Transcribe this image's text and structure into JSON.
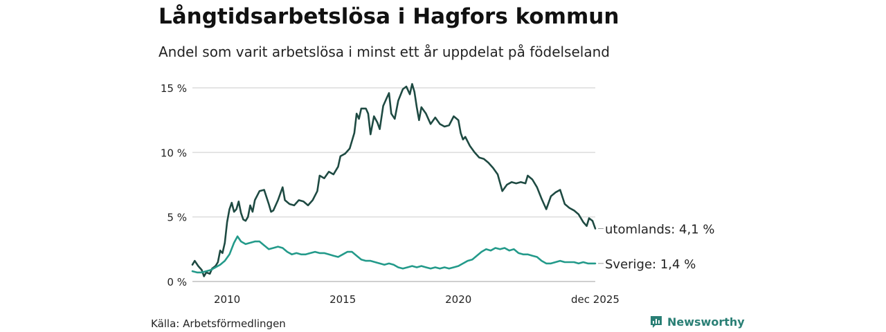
{
  "header": {
    "title": "Långtidsarbetslösa i Hagfors kommun",
    "subtitle": "Andel som varit arbetslösa i minst ett år uppdelat på födelseland"
  },
  "footer": {
    "source": "Källa: Arbetsförmedlingen",
    "brand": "Newsworthy",
    "brand_color": "#2a7f75"
  },
  "chart_data": {
    "type": "line",
    "x_start": "2008-06",
    "x_end": "2025-12",
    "ylim": [
      0,
      15.5
    ],
    "yticks": [
      {
        "value": 0,
        "label": "0 %"
      },
      {
        "value": 5,
        "label": "5 %"
      },
      {
        "value": 10,
        "label": "10 %"
      },
      {
        "value": 15,
        "label": "15 %"
      }
    ],
    "xticks": [
      {
        "value": 2010,
        "label": "2010"
      },
      {
        "value": 2015,
        "label": "2015"
      },
      {
        "value": 2020,
        "label": "2020"
      },
      {
        "value": 2025.92,
        "label": "dec 2025"
      }
    ],
    "grid": true,
    "series": [
      {
        "name": "utomlands",
        "end_label": "utomlands: 4,1 %",
        "color": "#1e4a42",
        "points": [
          [
            2008.5,
            1.3
          ],
          [
            2008.6,
            1.6
          ],
          [
            2008.75,
            1.2
          ],
          [
            2008.9,
            0.9
          ],
          [
            2009.0,
            0.4
          ],
          [
            2009.1,
            0.7
          ],
          [
            2009.25,
            0.6
          ],
          [
            2009.35,
            1.0
          ],
          [
            2009.5,
            1.2
          ],
          [
            2009.6,
            1.5
          ],
          [
            2009.7,
            2.4
          ],
          [
            2009.8,
            2.2
          ],
          [
            2009.9,
            3.0
          ],
          [
            2010.0,
            4.6
          ],
          [
            2010.1,
            5.6
          ],
          [
            2010.2,
            6.1
          ],
          [
            2010.3,
            5.4
          ],
          [
            2010.4,
            5.6
          ],
          [
            2010.5,
            6.2
          ],
          [
            2010.6,
            5.3
          ],
          [
            2010.7,
            4.8
          ],
          [
            2010.8,
            4.7
          ],
          [
            2010.9,
            5.0
          ],
          [
            2011.0,
            5.9
          ],
          [
            2011.1,
            5.4
          ],
          [
            2011.2,
            6.3
          ],
          [
            2011.4,
            7.0
          ],
          [
            2011.6,
            7.1
          ],
          [
            2011.8,
            6.0
          ],
          [
            2011.9,
            5.4
          ],
          [
            2012.0,
            5.5
          ],
          [
            2012.2,
            6.3
          ],
          [
            2012.4,
            7.3
          ],
          [
            2012.5,
            6.3
          ],
          [
            2012.7,
            6.0
          ],
          [
            2012.9,
            5.9
          ],
          [
            2013.1,
            6.3
          ],
          [
            2013.3,
            6.2
          ],
          [
            2013.5,
            5.9
          ],
          [
            2013.7,
            6.3
          ],
          [
            2013.9,
            7.0
          ],
          [
            2014.0,
            8.2
          ],
          [
            2014.2,
            8.0
          ],
          [
            2014.4,
            8.5
          ],
          [
            2014.6,
            8.3
          ],
          [
            2014.8,
            8.9
          ],
          [
            2014.9,
            9.7
          ],
          [
            2015.1,
            9.9
          ],
          [
            2015.3,
            10.3
          ],
          [
            2015.5,
            11.5
          ],
          [
            2015.6,
            13.0
          ],
          [
            2015.7,
            12.6
          ],
          [
            2015.8,
            13.4
          ],
          [
            2016.0,
            13.4
          ],
          [
            2016.1,
            13.0
          ],
          [
            2016.2,
            11.4
          ],
          [
            2016.35,
            12.8
          ],
          [
            2016.5,
            12.3
          ],
          [
            2016.6,
            11.8
          ],
          [
            2016.75,
            13.6
          ],
          [
            2016.9,
            14.2
          ],
          [
            2017.0,
            14.6
          ],
          [
            2017.1,
            13.0
          ],
          [
            2017.25,
            12.6
          ],
          [
            2017.4,
            14.0
          ],
          [
            2017.6,
            14.9
          ],
          [
            2017.75,
            15.1
          ],
          [
            2017.9,
            14.5
          ],
          [
            2018.0,
            15.3
          ],
          [
            2018.1,
            14.7
          ],
          [
            2018.2,
            13.5
          ],
          [
            2018.3,
            12.5
          ],
          [
            2018.4,
            13.5
          ],
          [
            2018.6,
            13.0
          ],
          [
            2018.8,
            12.2
          ],
          [
            2019.0,
            12.7
          ],
          [
            2019.2,
            12.2
          ],
          [
            2019.4,
            12.0
          ],
          [
            2019.6,
            12.1
          ],
          [
            2019.8,
            12.8
          ],
          [
            2020.0,
            12.5
          ],
          [
            2020.1,
            11.5
          ],
          [
            2020.2,
            11.0
          ],
          [
            2020.3,
            11.2
          ],
          [
            2020.5,
            10.5
          ],
          [
            2020.7,
            10.0
          ],
          [
            2020.9,
            9.6
          ],
          [
            2021.1,
            9.5
          ],
          [
            2021.3,
            9.2
          ],
          [
            2021.5,
            8.8
          ],
          [
            2021.7,
            8.3
          ],
          [
            2021.9,
            7.0
          ],
          [
            2022.1,
            7.5
          ],
          [
            2022.3,
            7.7
          ],
          [
            2022.5,
            7.6
          ],
          [
            2022.7,
            7.7
          ],
          [
            2022.9,
            7.6
          ],
          [
            2023.0,
            8.2
          ],
          [
            2023.2,
            7.9
          ],
          [
            2023.4,
            7.3
          ],
          [
            2023.6,
            6.4
          ],
          [
            2023.8,
            5.6
          ],
          [
            2024.0,
            6.6
          ],
          [
            2024.2,
            6.9
          ],
          [
            2024.4,
            7.1
          ],
          [
            2024.6,
            6.0
          ],
          [
            2024.8,
            5.7
          ],
          [
            2025.0,
            5.5
          ],
          [
            2025.2,
            5.2
          ],
          [
            2025.4,
            4.6
          ],
          [
            2025.55,
            4.3
          ],
          [
            2025.65,
            4.9
          ],
          [
            2025.8,
            4.7
          ],
          [
            2025.92,
            4.1
          ]
        ]
      },
      {
        "name": "Sverige",
        "end_label": "Sverige: 1,4 %",
        "color": "#239a8a",
        "points": [
          [
            2008.5,
            0.8
          ],
          [
            2008.7,
            0.7
          ],
          [
            2008.9,
            0.7
          ],
          [
            2009.1,
            0.8
          ],
          [
            2009.3,
            0.9
          ],
          [
            2009.5,
            1.1
          ],
          [
            2009.7,
            1.3
          ],
          [
            2009.9,
            1.6
          ],
          [
            2010.1,
            2.1
          ],
          [
            2010.3,
            3.0
          ],
          [
            2010.45,
            3.5
          ],
          [
            2010.6,
            3.1
          ],
          [
            2010.8,
            2.9
          ],
          [
            2011.0,
            3.0
          ],
          [
            2011.2,
            3.1
          ],
          [
            2011.4,
            3.1
          ],
          [
            2011.6,
            2.8
          ],
          [
            2011.8,
            2.5
          ],
          [
            2012.0,
            2.6
          ],
          [
            2012.2,
            2.7
          ],
          [
            2012.4,
            2.6
          ],
          [
            2012.6,
            2.3
          ],
          [
            2012.8,
            2.1
          ],
          [
            2013.0,
            2.2
          ],
          [
            2013.2,
            2.1
          ],
          [
            2013.4,
            2.1
          ],
          [
            2013.6,
            2.2
          ],
          [
            2013.8,
            2.3
          ],
          [
            2014.0,
            2.2
          ],
          [
            2014.2,
            2.2
          ],
          [
            2014.4,
            2.1
          ],
          [
            2014.6,
            2.0
          ],
          [
            2014.8,
            1.9
          ],
          [
            2015.0,
            2.1
          ],
          [
            2015.2,
            2.3
          ],
          [
            2015.4,
            2.3
          ],
          [
            2015.6,
            2.0
          ],
          [
            2015.8,
            1.7
          ],
          [
            2016.0,
            1.6
          ],
          [
            2016.2,
            1.6
          ],
          [
            2016.4,
            1.5
          ],
          [
            2016.6,
            1.4
          ],
          [
            2016.8,
            1.3
          ],
          [
            2017.0,
            1.4
          ],
          [
            2017.2,
            1.3
          ],
          [
            2017.4,
            1.1
          ],
          [
            2017.6,
            1.0
          ],
          [
            2017.8,
            1.1
          ],
          [
            2018.0,
            1.2
          ],
          [
            2018.2,
            1.1
          ],
          [
            2018.4,
            1.2
          ],
          [
            2018.6,
            1.1
          ],
          [
            2018.8,
            1.0
          ],
          [
            2019.0,
            1.1
          ],
          [
            2019.2,
            1.0
          ],
          [
            2019.4,
            1.1
          ],
          [
            2019.6,
            1.0
          ],
          [
            2019.8,
            1.1
          ],
          [
            2020.0,
            1.2
          ],
          [
            2020.2,
            1.4
          ],
          [
            2020.4,
            1.6
          ],
          [
            2020.6,
            1.7
          ],
          [
            2020.8,
            2.0
          ],
          [
            2021.0,
            2.3
          ],
          [
            2021.2,
            2.5
          ],
          [
            2021.4,
            2.4
          ],
          [
            2021.6,
            2.6
          ],
          [
            2021.8,
            2.5
          ],
          [
            2022.0,
            2.6
          ],
          [
            2022.2,
            2.4
          ],
          [
            2022.4,
            2.5
          ],
          [
            2022.6,
            2.2
          ],
          [
            2022.8,
            2.1
          ],
          [
            2023.0,
            2.1
          ],
          [
            2023.2,
            2.0
          ],
          [
            2023.4,
            1.9
          ],
          [
            2023.6,
            1.6
          ],
          [
            2023.8,
            1.4
          ],
          [
            2024.0,
            1.4
          ],
          [
            2024.2,
            1.5
          ],
          [
            2024.4,
            1.6
          ],
          [
            2024.6,
            1.5
          ],
          [
            2024.8,
            1.5
          ],
          [
            2025.0,
            1.5
          ],
          [
            2025.2,
            1.4
          ],
          [
            2025.4,
            1.5
          ],
          [
            2025.6,
            1.4
          ],
          [
            2025.8,
            1.4
          ],
          [
            2025.92,
            1.4
          ]
        ]
      }
    ]
  }
}
